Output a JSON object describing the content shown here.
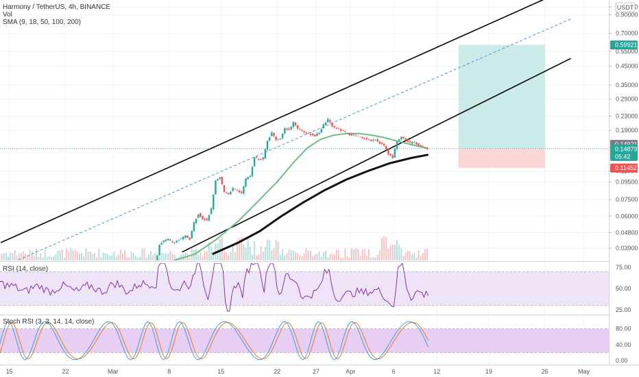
{
  "header": {
    "title": "Harmony / TetherUS, 4h, BINANCE",
    "vol_label": "Vol",
    "sma_label": "SMA (9, 18, 50, 100, 200)"
  },
  "currency": "USDT",
  "chart_data": {
    "type": "line",
    "main_panel": {
      "scale": "log",
      "y_ticks": [
        "1.00000",
        "0.90000",
        "0.70000",
        "0.55000",
        "0.45000",
        "0.35000",
        "0.29000",
        "0.23000",
        "0.19000",
        "0.15000",
        "0.11000",
        "0.09500",
        "0.07500",
        "0.06000",
        "0.04800",
        "0.03900"
      ],
      "price_tags": {
        "target": "0.59921",
        "sma": "0.14921",
        "current": "0.14879",
        "countdown": "05:42",
        "stop": "0.11452"
      },
      "price_series": [
        [
          -3,
          0.024
        ],
        [
          0,
          0.026
        ],
        [
          3,
          0.027
        ],
        [
          6,
          0.026
        ],
        [
          9,
          0.027
        ],
        [
          12,
          0.026
        ],
        [
          15,
          0.027
        ],
        [
          18,
          0.026
        ],
        [
          21,
          0.027
        ],
        [
          24,
          0.026
        ],
        [
          27,
          0.028
        ],
        [
          30,
          0.027
        ],
        [
          33,
          0.029
        ],
        [
          36,
          0.031
        ],
        [
          37,
          0.041
        ],
        [
          38,
          0.043
        ],
        [
          39,
          0.044
        ],
        [
          40,
          0.042
        ],
        [
          41,
          0.043
        ],
        [
          42,
          0.044
        ],
        [
          43,
          0.046
        ],
        [
          44,
          0.044
        ],
        [
          45,
          0.055
        ],
        [
          46,
          0.062
        ],
        [
          47,
          0.058
        ],
        [
          48,
          0.057
        ],
        [
          49,
          0.066
        ],
        [
          50,
          0.096
        ],
        [
          51,
          0.101
        ],
        [
          52,
          0.083
        ],
        [
          53,
          0.081
        ],
        [
          54,
          0.087
        ],
        [
          55,
          0.084
        ],
        [
          56,
          0.082
        ],
        [
          57,
          0.099
        ],
        [
          58,
          0.103
        ],
        [
          59,
          0.133
        ],
        [
          60,
          0.128
        ],
        [
          61,
          0.131
        ],
        [
          62,
          0.165
        ],
        [
          63,
          0.184
        ],
        [
          64,
          0.168
        ],
        [
          65,
          0.17
        ],
        [
          66,
          0.195
        ],
        [
          67,
          0.19
        ],
        [
          68,
          0.213
        ],
        [
          69,
          0.195
        ],
        [
          70,
          0.19
        ],
        [
          71,
          0.182
        ],
        [
          72,
          0.18
        ],
        [
          73,
          0.176
        ],
        [
          74,
          0.185
        ],
        [
          75,
          0.205
        ],
        [
          76,
          0.22
        ],
        [
          77,
          0.2
        ],
        [
          78,
          0.195
        ],
        [
          79,
          0.19
        ],
        [
          80,
          0.185
        ],
        [
          81,
          0.18
        ],
        [
          82,
          0.178
        ],
        [
          83,
          0.175
        ],
        [
          84,
          0.17
        ],
        [
          85,
          0.17
        ],
        [
          86,
          0.165
        ],
        [
          87,
          0.168
        ],
        [
          88,
          0.16
        ],
        [
          89,
          0.155
        ],
        [
          90,
          0.138
        ],
        [
          91,
          0.132
        ],
        [
          92,
          0.165
        ],
        [
          93,
          0.175
        ],
        [
          94,
          0.168
        ],
        [
          95,
          0.16
        ],
        [
          96,
          0.162
        ],
        [
          97,
          0.155
        ],
        [
          98,
          0.152
        ],
        [
          99,
          0.149
        ]
      ],
      "sma_series": [
        [
          40,
          0.033
        ],
        [
          45,
          0.036
        ],
        [
          50,
          0.044
        ],
        [
          55,
          0.056
        ],
        [
          60,
          0.075
        ],
        [
          64,
          0.095
        ],
        [
          68,
          0.125
        ],
        [
          71,
          0.15
        ],
        [
          74,
          0.168
        ],
        [
          77,
          0.178
        ],
        [
          80,
          0.182
        ],
        [
          83,
          0.182
        ],
        [
          86,
          0.178
        ],
        [
          89,
          0.172
        ],
        [
          92,
          0.164
        ],
        [
          95,
          0.157
        ],
        [
          99,
          0.149
        ]
      ],
      "long_sma_series": [
        [
          49,
          0.036
        ],
        [
          55,
          0.042
        ],
        [
          60,
          0.049
        ],
        [
          65,
          0.06
        ],
        [
          70,
          0.072
        ],
        [
          75,
          0.085
        ],
        [
          80,
          0.098
        ],
        [
          85,
          0.11
        ],
        [
          90,
          0.122
        ],
        [
          95,
          0.131
        ],
        [
          99,
          0.137
        ]
      ],
      "channel_upper": [
        [
          0,
          0.042
        ],
        [
          132,
          1.3
        ]
      ],
      "channel_mid": [
        [
          0,
          0.03
        ],
        [
          132,
          0.85
        ]
      ],
      "channel_lower": [
        [
          42,
          0.037
        ],
        [
          132,
          0.5
        ]
      ],
      "position": {
        "start": 106,
        "end": 126,
        "entry": 0.14879,
        "target": 0.59921,
        "stop": 0.11452
      }
    },
    "rsi_panel": {
      "title": "RSI (14, close)",
      "y_ticks": [
        "75.00",
        "50.00",
        "25.00"
      ],
      "upper": 70,
      "lower": 30
    },
    "stoch_panel": {
      "title": "Stoch RSI (3, 3, 14, 14, close)",
      "y_ticks": [
        "80.00",
        "40.00",
        "0.00"
      ],
      "upper": 80,
      "lower": 20
    },
    "x_ticks": [
      {
        "label": "15",
        "d": 2
      },
      {
        "label": "22",
        "d": 15
      },
      {
        "label": "Mar",
        "d": 26
      },
      {
        "label": "8",
        "d": 39
      },
      {
        "label": "15",
        "d": 51
      },
      {
        "label": "22",
        "d": 64
      },
      {
        "label": "27",
        "d": 73
      },
      {
        "label": "Apr",
        "d": 81
      },
      {
        "label": "6",
        "d": 91
      },
      {
        "label": "12",
        "d": 101
      },
      {
        "label": "19",
        "d": 113
      },
      {
        "label": "26",
        "d": 126
      },
      {
        "label": "May",
        "d": 135
      }
    ]
  },
  "colors": {
    "candle_up": "#26a69a",
    "candle_down": "#ef5350",
    "sma_green": "#6abf83",
    "long_sma": "#111111",
    "channel": "#000000",
    "mid_dashed": "#4a90d9",
    "profit_zone": "#b9e4e0",
    "loss_zone": "#f9cccc",
    "rsi_line": "#7b1fa2",
    "rsi_band": "#efe3f7",
    "stoch_k": "#2196f3",
    "stoch_d": "#ef6c00",
    "stoch_band": "#e7cff4",
    "target_tag": "#26a69a",
    "stop_tag": "#ef5350",
    "sma_tag": "#787b86"
  }
}
